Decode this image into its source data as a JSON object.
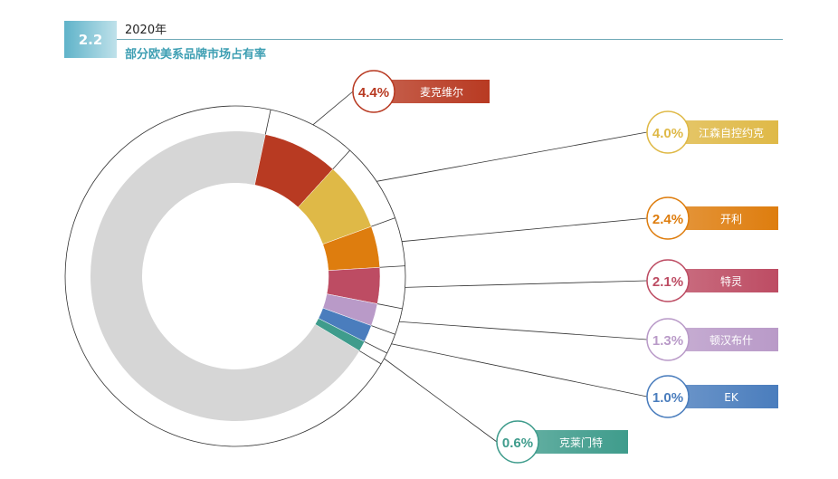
{
  "header": {
    "section": "2.2",
    "year": "2020年",
    "title": "部分欧美系品牌市场占有率"
  },
  "chart_data": {
    "type": "pie",
    "variant": "donut",
    "title": "部分欧美系品牌市场占有率",
    "legend": "callouts",
    "series": [
      {
        "name": "麦克维尔",
        "value": 4.4,
        "label": "4.4%",
        "color": "#b83a22"
      },
      {
        "name": "江森自控约克",
        "value": 4.0,
        "label": "4.0%",
        "color": "#dfb947"
      },
      {
        "name": "开利",
        "value": 2.4,
        "label": "2.4%",
        "color": "#de7d0e"
      },
      {
        "name": "特灵",
        "value": 2.1,
        "label": "2.1%",
        "color": "#bd4c63"
      },
      {
        "name": "顿汉布什",
        "value": 1.3,
        "label": "1.3%",
        "color": "#b99ac8"
      },
      {
        "name": "EK",
        "value": 1.0,
        "label": "1.0%",
        "color": "#4a7dbd"
      },
      {
        "name": "克莱门特",
        "value": 0.6,
        "label": "0.6%",
        "color": "#3f9c8c"
      }
    ],
    "other_color": "#d6d6d6"
  }
}
